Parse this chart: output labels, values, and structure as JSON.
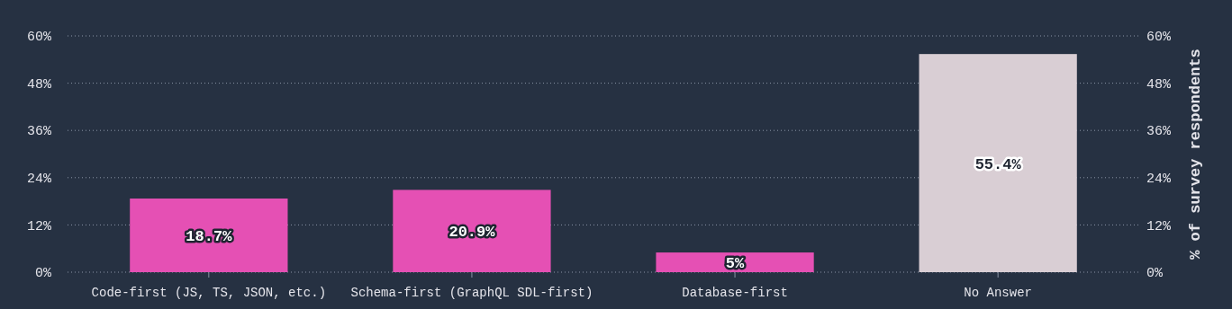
{
  "chart_data": {
    "type": "bar",
    "categories": [
      "Code-first (JS, TS, JSON, etc.)",
      "Schema-first (GraphQL SDL-first)",
      "Database-first",
      "No Answer"
    ],
    "values": [
      18.7,
      20.9,
      5,
      55.4
    ],
    "colors": [
      "#e550b4",
      "#e550b4",
      "#e550b4",
      "#d9ced4"
    ],
    "value_labels": [
      "18.7%",
      "20.9%",
      "5%",
      "55.4%"
    ],
    "ylim": [
      0,
      60
    ],
    "yticks": [
      {
        "value": 0,
        "label": "0%"
      },
      {
        "value": 12,
        "label": "12%"
      },
      {
        "value": 24,
        "label": "24%"
      },
      {
        "value": 36,
        "label": "36%"
      },
      {
        "value": 48,
        "label": "48%"
      },
      {
        "value": 60,
        "label": "60%"
      }
    ],
    "y2lim": [
      0,
      60
    ],
    "y2ticks": [
      {
        "value": 0,
        "label": "0%"
      },
      {
        "value": 12,
        "label": "12%"
      },
      {
        "value": 24,
        "label": "24%"
      },
      {
        "value": 36,
        "label": "36%"
      },
      {
        "value": 48,
        "label": "48%"
      },
      {
        "value": 60,
        "label": "60%"
      }
    ],
    "y2label": "% of survey respondents",
    "grid": "y"
  }
}
